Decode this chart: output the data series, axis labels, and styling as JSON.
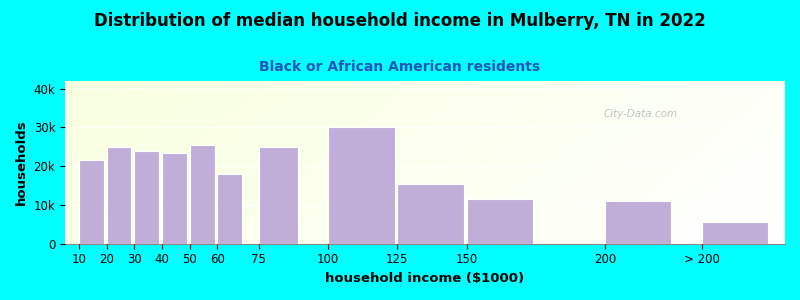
{
  "title": "Distribution of median household income in Mulberry, TN in 2022",
  "subtitle": "Black or African American residents",
  "xlabel": "household income ($1000)",
  "ylabel": "households",
  "background_outer": "#00FFFF",
  "bar_color": "#c0aed8",
  "bar_edge_color": "#ffffff",
  "categories": [
    "10",
    "20",
    "30",
    "40",
    "50",
    "60",
    "75",
    "100",
    "125",
    "150",
    "200",
    "> 200"
  ],
  "values": [
    21500,
    25000,
    24000,
    23500,
    25500,
    18000,
    25000,
    30000,
    15500,
    11500,
    11000,
    5500
  ],
  "x_positions": [
    10,
    20,
    30,
    40,
    50,
    60,
    75,
    100,
    125,
    150,
    200,
    235
  ],
  "bar_widths": [
    9,
    9,
    9,
    9,
    9,
    9,
    14,
    24,
    24,
    24,
    24,
    24
  ],
  "xlim": [
    5,
    265
  ],
  "ylim": [
    0,
    42000
  ],
  "yticks": [
    0,
    10000,
    20000,
    30000,
    40000
  ],
  "ytick_labels": [
    "0",
    "10k",
    "20k",
    "30k",
    "40k"
  ],
  "title_fontsize": 12,
  "subtitle_fontsize": 10,
  "axis_label_fontsize": 9.5,
  "tick_fontsize": 8.5,
  "watermark": "City-Data.com",
  "subtitle_color": "#2255bb",
  "title_color": "#000000",
  "grid_color": "#ffffff",
  "bg_left_color": "#daeeda",
  "bg_right_color": "#f0f5f0"
}
